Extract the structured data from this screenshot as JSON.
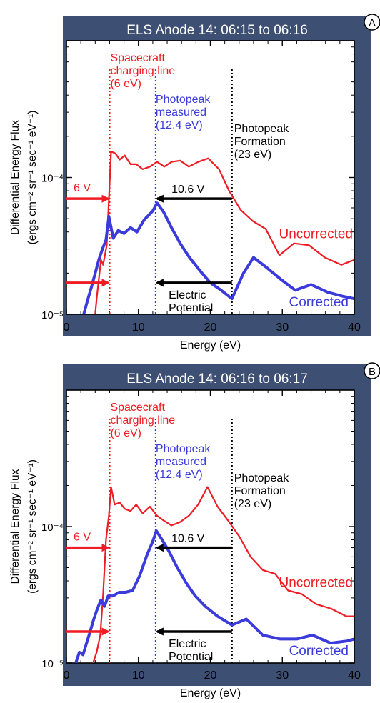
{
  "colors": {
    "frame": "#3d4f73",
    "uncorrected": "#ee1c24",
    "corrected": "#3b3bdc",
    "annotation_black": "#000000",
    "title_text": "#ffffff"
  },
  "axes_common": {
    "xlabel": "Energy (eV)",
    "ylabel_line1": "Differential Energy Flux",
    "ylabel_line2": "(ergs cm⁻² sr⁻¹ sec⁻¹ eV⁻¹)",
    "x_ticks": [
      "0",
      "10",
      "20",
      "30",
      "40"
    ],
    "y_tick_low": "10⁻⁵",
    "y_tick_high": "10⁻⁴"
  },
  "chart_data": [
    {
      "type": "line",
      "badge": "A",
      "title": "ELS Anode 14: 06:15 to 06:16",
      "xlim": [
        0,
        40
      ],
      "ylim": [
        1e-05,
        0.001
      ],
      "yscale": "log",
      "series": [
        {
          "name": "Uncorrected",
          "color": "#ee1c24",
          "points": [
            [
              3.6,
              6e-06
            ],
            [
              4.2,
              1.3e-05
            ],
            [
              4.8,
              2.5e-05
            ],
            [
              5.1,
              2.3e-05
            ],
            [
              5.6,
              3.2e-05
            ],
            [
              5.9,
              6.8e-05
            ],
            [
              6.2,
              0.000155
            ],
            [
              6.8,
              0.00015
            ],
            [
              7.4,
              0.000135
            ],
            [
              8.1,
              0.000145
            ],
            [
              8.9,
              0.000125
            ],
            [
              9.7,
              0.000125
            ],
            [
              10.6,
              0.000115
            ],
            [
              11.6,
              0.00012
            ],
            [
              12.6,
              0.00013
            ],
            [
              13.6,
              0.00012
            ],
            [
              14.6,
              0.00013
            ],
            [
              15.8,
              0.000133
            ],
            [
              17.0,
              0.00012
            ],
            [
              18.3,
              0.00013
            ],
            [
              19.7,
              0.000138
            ],
            [
              21.2,
              0.000115
            ],
            [
              22.6,
              8e-05
            ],
            [
              24.2,
              5.8e-05
            ],
            [
              25.9,
              4.8e-05
            ],
            [
              27.7,
              4.2e-05
            ],
            [
              29.6,
              2.7e-05
            ],
            [
              31.6,
              3.3e-05
            ],
            [
              33.7,
              3.2e-05
            ],
            [
              35.9,
              2.6e-05
            ],
            [
              38.2,
              2.3e-05
            ],
            [
              40.0,
              2.5e-05
            ]
          ]
        },
        {
          "name": "Corrected",
          "color": "#3b3bdc",
          "points": [
            [
              2.4,
              1e-05
            ],
            [
              3.0,
              1.3e-05
            ],
            [
              3.5,
              1.6e-05
            ],
            [
              4.0,
              2e-05
            ],
            [
              4.5,
              2.5e-05
            ],
            [
              5.0,
              3e-05
            ],
            [
              5.5,
              3.5e-05
            ],
            [
              5.9,
              5.2e-05
            ],
            [
              6.5,
              3.6e-05
            ],
            [
              7.2,
              4.1e-05
            ],
            [
              8.0,
              3.9e-05
            ],
            [
              8.9,
              4.3e-05
            ],
            [
              9.8,
              4e-05
            ],
            [
              10.8,
              4.9e-05
            ],
            [
              12.0,
              5.7e-05
            ],
            [
              12.6,
              6.5e-05
            ],
            [
              13.5,
              5.6e-05
            ],
            [
              14.6,
              4.3e-05
            ],
            [
              15.8,
              3.3e-05
            ],
            [
              17.1,
              2.6e-05
            ],
            [
              18.5,
              2.1e-05
            ],
            [
              20.0,
              1.7e-05
            ],
            [
              21.5,
              1.5e-05
            ],
            [
              23.0,
              1.3e-05
            ],
            [
              24.6,
              2e-05
            ],
            [
              26.0,
              2.6e-05
            ],
            [
              27.8,
              2.2e-05
            ],
            [
              29.8,
              1.8e-05
            ],
            [
              31.8,
              1.5e-05
            ],
            [
              34.0,
              1.65e-05
            ],
            [
              36.3,
              1.45e-05
            ],
            [
              38.5,
              1.35e-05
            ],
            [
              40.0,
              1.3e-05
            ]
          ]
        }
      ],
      "vlines": [
        {
          "x": 6.0,
          "color": "#ee1c24"
        },
        {
          "x": 12.4,
          "color": "#3b3bdc"
        },
        {
          "x": 23.0,
          "color": "#000000"
        }
      ],
      "annotations": {
        "charging": [
          "Spacecraft",
          "charging line",
          "(6 eV)"
        ],
        "photopeak_measured": [
          "Photopeak",
          "measured",
          "(12.4 eV)"
        ],
        "photopeak_formation": [
          "Photopeak",
          "Formation",
          "(23 eV)"
        ],
        "six_v": "6 V",
        "ten_six_v": "10.6 V",
        "electric_potential": [
          "Electric",
          "Potential"
        ],
        "uncorrected": "Uncorrected",
        "corrected": "Corrected"
      },
      "arrows": {
        "upper_y": 7e-05,
        "lower_y": 1.7e-05
      }
    },
    {
      "type": "line",
      "badge": "B",
      "title": "ELS Anode 14: 06:16 to 06:17",
      "xlim": [
        0,
        40
      ],
      "ylim": [
        1e-05,
        0.001
      ],
      "yscale": "log",
      "series": [
        {
          "name": "Uncorrected",
          "color": "#ee1c24",
          "points": [
            [
              3.7,
              1e-05
            ],
            [
              4.2,
              1.2e-05
            ],
            [
              4.7,
              1.6e-05
            ],
            [
              5.1,
              3.2e-05
            ],
            [
              5.5,
              8e-05
            ],
            [
              5.9,
              0.00012
            ],
            [
              6.2,
              0.000195
            ],
            [
              6.7,
              0.000145
            ],
            [
              7.4,
              0.00015
            ],
            [
              8.1,
              0.000135
            ],
            [
              8.9,
              0.00013
            ],
            [
              9.7,
              0.000145
            ],
            [
              10.6,
              0.000125
            ],
            [
              11.6,
              0.00014
            ],
            [
              12.6,
              0.00012
            ],
            [
              13.6,
              0.00011
            ],
            [
              14.6,
              0.000102
            ],
            [
              15.8,
              0.000108
            ],
            [
              17.0,
              0.00012
            ],
            [
              18.3,
              0.000145
            ],
            [
              19.6,
              0.000195
            ],
            [
              21.0,
              0.00014
            ],
            [
              22.5,
              0.00011
            ],
            [
              24.0,
              8.5e-05
            ],
            [
              25.6,
              6e-05
            ],
            [
              27.3,
              4.8e-05
            ],
            [
              29.0,
              4.5e-05
            ],
            [
              30.8,
              3.4e-05
            ],
            [
              32.7,
              3.2e-05
            ],
            [
              34.7,
              2.7e-05
            ],
            [
              36.8,
              2.5e-05
            ],
            [
              38.9,
              2.2e-05
            ],
            [
              40.0,
              2.2e-05
            ]
          ]
        },
        {
          "name": "Corrected",
          "color": "#3b3bdc",
          "points": [
            [
              1.3,
              1e-05
            ],
            [
              1.8,
              1.2e-05
            ],
            [
              2.3,
              1.15e-05
            ],
            [
              2.8,
              1.4e-05
            ],
            [
              3.3,
              1.7e-05
            ],
            [
              3.8,
              2.1e-05
            ],
            [
              4.3,
              2.5e-05
            ],
            [
              4.8,
              2.9e-05
            ],
            [
              5.3,
              2.6e-05
            ],
            [
              5.8,
              3.1e-05
            ],
            [
              6.5,
              3.1e-05
            ],
            [
              7.3,
              3.3e-05
            ],
            [
              8.2,
              3.3e-05
            ],
            [
              9.2,
              3.4e-05
            ],
            [
              10.2,
              4.4e-05
            ],
            [
              11.2,
              6.2e-05
            ],
            [
              12.0,
              7.8e-05
            ],
            [
              12.5,
              9.3e-05
            ],
            [
              13.3,
              8e-05
            ],
            [
              14.3,
              6.5e-05
            ],
            [
              15.4,
              5e-05
            ],
            [
              16.6,
              3.9e-05
            ],
            [
              17.9,
              3.1e-05
            ],
            [
              19.3,
              2.6e-05
            ],
            [
              21.0,
              2.2e-05
            ],
            [
              23.0,
              1.9e-05
            ],
            [
              25.0,
              2.1e-05
            ],
            [
              27.3,
              1.6e-05
            ],
            [
              29.7,
              1.5e-05
            ],
            [
              32.0,
              1.5e-05
            ],
            [
              34.2,
              1.6e-05
            ],
            [
              36.7,
              1.4e-05
            ],
            [
              39.0,
              1.45e-05
            ],
            [
              40.0,
              1.5e-05
            ]
          ]
        }
      ],
      "vlines": [
        {
          "x": 6.0,
          "color": "#ee1c24"
        },
        {
          "x": 12.4,
          "color": "#3b3bdc"
        },
        {
          "x": 23.0,
          "color": "#000000"
        }
      ],
      "annotations": {
        "charging": [
          "Spacecraft",
          "charging line",
          "(6 eV)"
        ],
        "photopeak_measured": [
          "Photopeak",
          "measured",
          "(12.4 eV)"
        ],
        "photopeak_formation": [
          "Photopeak",
          "Formation",
          "(23 eV)"
        ],
        "six_v": "6 V",
        "ten_six_v": "10.6 V",
        "electric_potential": [
          "Electric",
          "Potential"
        ],
        "uncorrected": "Uncorrected",
        "corrected": "Corrected"
      },
      "arrows": {
        "upper_y": 7e-05,
        "lower_y": 1.7e-05
      }
    }
  ]
}
